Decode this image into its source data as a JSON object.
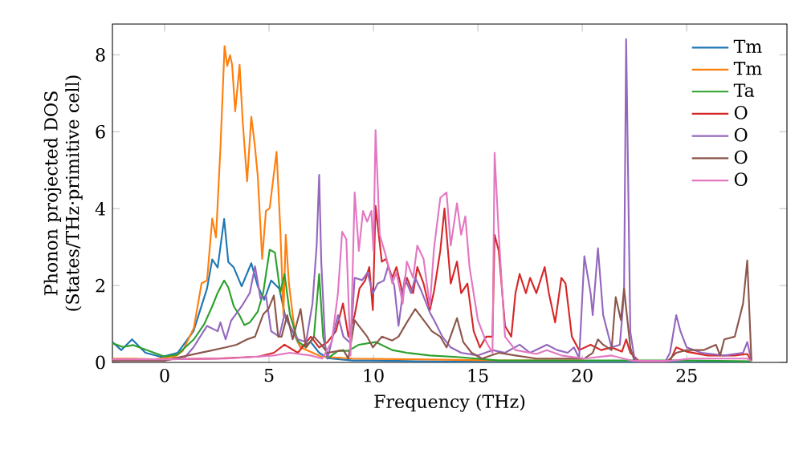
{
  "chart_data": {
    "type": "line",
    "xlabel": "Frequency (THz)",
    "ylabel": "Phonon projected DOS (States/THz·primitive cell)",
    "xlim": [
      -2.5,
      29.8
    ],
    "ylim": [
      0,
      8.8
    ],
    "xticks": [
      0,
      5,
      10,
      15,
      20,
      25
    ],
    "yticks": [
      0,
      2,
      4,
      6,
      8
    ],
    "legend": "top right",
    "line_style": "solid",
    "series": [
      {
        "name": "Tm",
        "color": "#1f77b4",
        "x": [
          -2.5,
          -2.08,
          -1.56,
          -0.92,
          -0.15,
          0.62,
          1.38,
          2.03,
          2.28,
          2.54,
          2.85,
          3.05,
          3.31,
          3.69,
          4.15,
          4.46,
          4.77,
          5.1,
          5.49,
          5.8,
          6.13,
          6.51,
          7.0,
          7.4,
          7.8,
          9,
          10,
          12,
          14,
          16,
          20,
          25,
          28.1
        ],
        "values": [
          0.53,
          0.32,
          0.6,
          0.25,
          0.14,
          0.25,
          0.81,
          1.92,
          2.68,
          2.47,
          3.73,
          2.61,
          2.47,
          1.98,
          2.58,
          1.98,
          1.63,
          2.13,
          1.92,
          1.15,
          0.81,
          0.39,
          0.53,
          0.25,
          0.11,
          0.05,
          0.05,
          0.03,
          0.02,
          0.02,
          0.01,
          0.01,
          0.01
        ]
      },
      {
        "name": "Tm",
        "color": "#ff7f0e",
        "x": [
          -2.5,
          -1.5,
          -0.5,
          0.5,
          0.87,
          1.4,
          1.77,
          2.03,
          2.28,
          2.46,
          2.67,
          2.87,
          3.0,
          3.13,
          3.23,
          3.38,
          3.59,
          3.74,
          3.95,
          4.15,
          4.31,
          4.46,
          4.67,
          4.85,
          5.03,
          5.36,
          5.54,
          5.69,
          5.8,
          5.95,
          6.26,
          6.51,
          7.5,
          9,
          12,
          16,
          20
        ],
        "values": [
          0.1,
          0.1,
          0.08,
          0.15,
          0.3,
          0.9,
          2.06,
          2.13,
          3.74,
          3.25,
          5.55,
          8.23,
          7.71,
          7.99,
          7.75,
          6.53,
          7.74,
          6.25,
          4.71,
          6.39,
          5.69,
          4.85,
          2.69,
          3.94,
          4.01,
          5.48,
          3.46,
          1.23,
          3.32,
          2.06,
          0.67,
          0.39,
          0.15,
          0.1,
          0.08,
          0.05,
          0.05
        ]
      },
      {
        "name": "Ta",
        "color": "#2ca02c",
        "x": [
          -2.5,
          -2.0,
          -1.5,
          -1.0,
          0.0,
          0.6,
          1.4,
          1.9,
          2.28,
          2.54,
          2.85,
          3.05,
          3.31,
          3.56,
          3.82,
          4.08,
          4.46,
          4.72,
          5.03,
          5.28,
          5.54,
          5.74,
          6.0,
          6.38,
          6.77,
          7.15,
          7.4,
          7.59,
          7.8,
          8.3,
          8.8,
          9.3,
          10.1,
          10.9,
          11.6,
          12.7,
          14.0,
          16,
          20,
          25,
          28.1
        ],
        "values": [
          0.5,
          0.4,
          0.45,
          0.35,
          0.15,
          0.2,
          0.6,
          1.0,
          1.46,
          1.81,
          2.13,
          1.95,
          1.46,
          1.25,
          0.97,
          1.04,
          1.32,
          1.81,
          2.93,
          2.86,
          1.81,
          2.3,
          1.25,
          0.55,
          0.39,
          0.67,
          2.3,
          0.67,
          0.1,
          0.3,
          0.3,
          0.46,
          0.53,
          0.32,
          0.25,
          0.18,
          0.14,
          0.05,
          0.05,
          0.05,
          0.03
        ]
      },
      {
        "name": "O",
        "color": "#d62728",
        "x": [
          -2.5,
          0,
          2.5,
          4.5,
          5.23,
          5.74,
          6.38,
          7.0,
          7.4,
          7.8,
          8.2,
          8.54,
          8.8,
          9.1,
          9.33,
          9.6,
          9.8,
          9.97,
          10.1,
          10.4,
          10.6,
          10.9,
          11.1,
          11.4,
          11.6,
          11.9,
          12.1,
          12.4,
          12.7,
          12.9,
          13.2,
          13.4,
          13.7,
          14.0,
          14.2,
          14.5,
          14.8,
          15.1,
          15.4,
          15.7,
          15.8,
          16.0,
          16.3,
          16.6,
          16.8,
          17.0,
          17.3,
          17.5,
          17.8,
          18.2,
          18.4,
          18.7,
          19.0,
          19.2,
          19.5,
          19.85,
          20.4,
          20.9,
          21.4,
          21.9,
          22.1,
          22.3,
          22.7,
          24.2,
          24.5,
          25.0,
          26.0,
          27.3,
          27.9,
          28.1
        ],
        "values": [
          0.08,
          0.08,
          0.1,
          0.15,
          0.25,
          0.46,
          0.25,
          0.67,
          0.39,
          0.53,
          0.81,
          1.53,
          0.67,
          1.23,
          1.92,
          2.13,
          2.48,
          1.36,
          4.07,
          2.62,
          2.69,
          2.2,
          2.48,
          1.79,
          2.2,
          1.8,
          2.48,
          2.05,
          1.36,
          1.85,
          2.9,
          4.0,
          2.05,
          2.62,
          1.8,
          2.05,
          0.81,
          0.39,
          0.67,
          0.67,
          3.32,
          2.9,
          0.95,
          0.67,
          1.8,
          2.3,
          1.8,
          2.2,
          1.8,
          2.48,
          1.8,
          1.04,
          2.2,
          2.05,
          0.67,
          0.32,
          0.46,
          0.32,
          0.39,
          0.28,
          0.6,
          0.25,
          0.04,
          0.04,
          0.39,
          0.28,
          0.18,
          0.18,
          0.22,
          0.04
        ]
      },
      {
        "name": "O",
        "color": "#9467bd",
        "x": [
          -2.5,
          0,
          1.0,
          1.38,
          2.03,
          2.54,
          2.67,
          2.92,
          3.18,
          3.69,
          4.08,
          4.33,
          4.59,
          4.85,
          5.1,
          5.49,
          5.74,
          6.0,
          6.38,
          6.77,
          7.08,
          7.28,
          7.4,
          7.5,
          7.7,
          7.8,
          8.3,
          8.56,
          8.9,
          9.1,
          9.46,
          9.72,
          9.97,
          10.2,
          10.5,
          10.7,
          11.0,
          11.2,
          11.5,
          11.8,
          12.0,
          12.3,
          12.7,
          12.9,
          13.3,
          13.7,
          14.2,
          15.0,
          15.7,
          16.3,
          17.0,
          17.5,
          18.3,
          18.8,
          19.3,
          19.6,
          19.85,
          20.1,
          20.4,
          20.5,
          20.75,
          21.0,
          21.4,
          21.8,
          22.0,
          22.1,
          22.3,
          22.5,
          22.8,
          23.95,
          24.2,
          24.5,
          24.7,
          25.0,
          25.7,
          26.8,
          27.7,
          27.9,
          28.1
        ],
        "values": [
          0.05,
          0.05,
          0.15,
          0.39,
          0.95,
          0.81,
          1.04,
          0.6,
          1.08,
          1.46,
          1.81,
          2.5,
          1.66,
          1.74,
          0.81,
          0.67,
          1.25,
          0.95,
          0.6,
          0.53,
          1.53,
          3.04,
          4.88,
          2.62,
          0.39,
          0.1,
          1.23,
          0.67,
          0.5,
          2.2,
          2.14,
          2.34,
          1.79,
          2.05,
          2.13,
          2.5,
          1.98,
          0.95,
          2.2,
          1.8,
          2.2,
          1.85,
          1.3,
          1.1,
          0.67,
          0.39,
          0.25,
          0.18,
          0.32,
          0.25,
          0.46,
          0.25,
          0.46,
          0.32,
          0.25,
          0.39,
          0.11,
          2.76,
          1.79,
          1.23,
          2.97,
          1.23,
          0.39,
          0.46,
          1.8,
          8.41,
          0.8,
          0.1,
          0.0,
          0.0,
          0.25,
          1.23,
          0.81,
          0.39,
          0.25,
          0.18,
          0.25,
          0.53,
          0.04
        ]
      },
      {
        "name": "O",
        "color": "#8c564b",
        "x": [
          -2.5,
          0,
          2.15,
          2.92,
          3.44,
          3.95,
          4.33,
          4.72,
          4.97,
          5.23,
          5.44,
          5.6,
          5.87,
          6.13,
          6.51,
          6.77,
          7.15,
          7.5,
          7.8,
          8.56,
          8.8,
          9.1,
          9.3,
          9.7,
          9.97,
          10.4,
          10.9,
          11.2,
          11.6,
          12.0,
          12.4,
          12.8,
          13.2,
          13.5,
          14.0,
          14.3,
          14.7,
          15.2,
          16.0,
          16.8,
          17.8,
          18.8,
          20.1,
          20.5,
          20.75,
          21.0,
          21.4,
          21.6,
          21.85,
          22.0,
          22.3,
          22.5,
          24.1,
          24.5,
          25.0,
          25.8,
          26.4,
          26.6,
          26.8,
          27.3,
          27.7,
          27.9,
          28.1
        ],
        "values": [
          0.05,
          0.05,
          0.3,
          0.39,
          0.46,
          0.6,
          0.67,
          1.25,
          1.39,
          1.74,
          0.67,
          0.67,
          1.23,
          0.6,
          1.39,
          0.39,
          0.67,
          0.46,
          0.25,
          0.32,
          0.1,
          1.1,
          0.95,
          0.67,
          0.39,
          0.67,
          0.57,
          0.67,
          1.04,
          1.39,
          1.1,
          0.81,
          0.67,
          0.39,
          1.15,
          0.53,
          0.25,
          0.1,
          0.25,
          0.18,
          0.1,
          0.1,
          0.1,
          0.25,
          0.6,
          0.46,
          0.32,
          1.7,
          1.1,
          1.92,
          0.39,
          0.04,
          0.04,
          0.25,
          0.32,
          0.32,
          0.46,
          0.18,
          0.6,
          0.67,
          1.53,
          2.65,
          0.04
        ]
      },
      {
        "name": "O",
        "color": "#e377c2",
        "x": [
          -2.5,
          0,
          3,
          5.23,
          6.0,
          7.0,
          7.54,
          8.0,
          8.3,
          8.5,
          8.7,
          8.9,
          9.1,
          9.3,
          9.5,
          9.7,
          9.9,
          10.0,
          10.1,
          10.3,
          10.6,
          10.9,
          11.1,
          11.4,
          11.6,
          11.9,
          12.1,
          12.4,
          12.7,
          12.9,
          13.2,
          13.5,
          13.7,
          14.0,
          14.2,
          14.4,
          14.6,
          15.0,
          15.4,
          15.7,
          15.8,
          16.0,
          16.3,
          16.8,
          17.8,
          18.3,
          19.0,
          20.1,
          21.4,
          22.4,
          24.2,
          25.2,
          27.9,
          28.1
        ],
        "values": [
          0.08,
          0.08,
          0.1,
          0.18,
          0.25,
          0.18,
          0.1,
          0.53,
          1.8,
          3.4,
          3.2,
          0.18,
          4.42,
          2.9,
          3.94,
          3.66,
          3.94,
          2.9,
          6.04,
          3.32,
          2.76,
          2.06,
          2.34,
          1.53,
          2.62,
          2.2,
          3.04,
          2.69,
          1.46,
          2.97,
          4.28,
          4.42,
          3.04,
          4.14,
          3.32,
          3.8,
          2.48,
          1.1,
          0.53,
          0.25,
          5.45,
          3.32,
          0.67,
          0.32,
          0.22,
          0.32,
          0.18,
          0.1,
          0.18,
          0.04,
          0.04,
          0.1,
          0.1,
          0.04
        ]
      }
    ]
  }
}
